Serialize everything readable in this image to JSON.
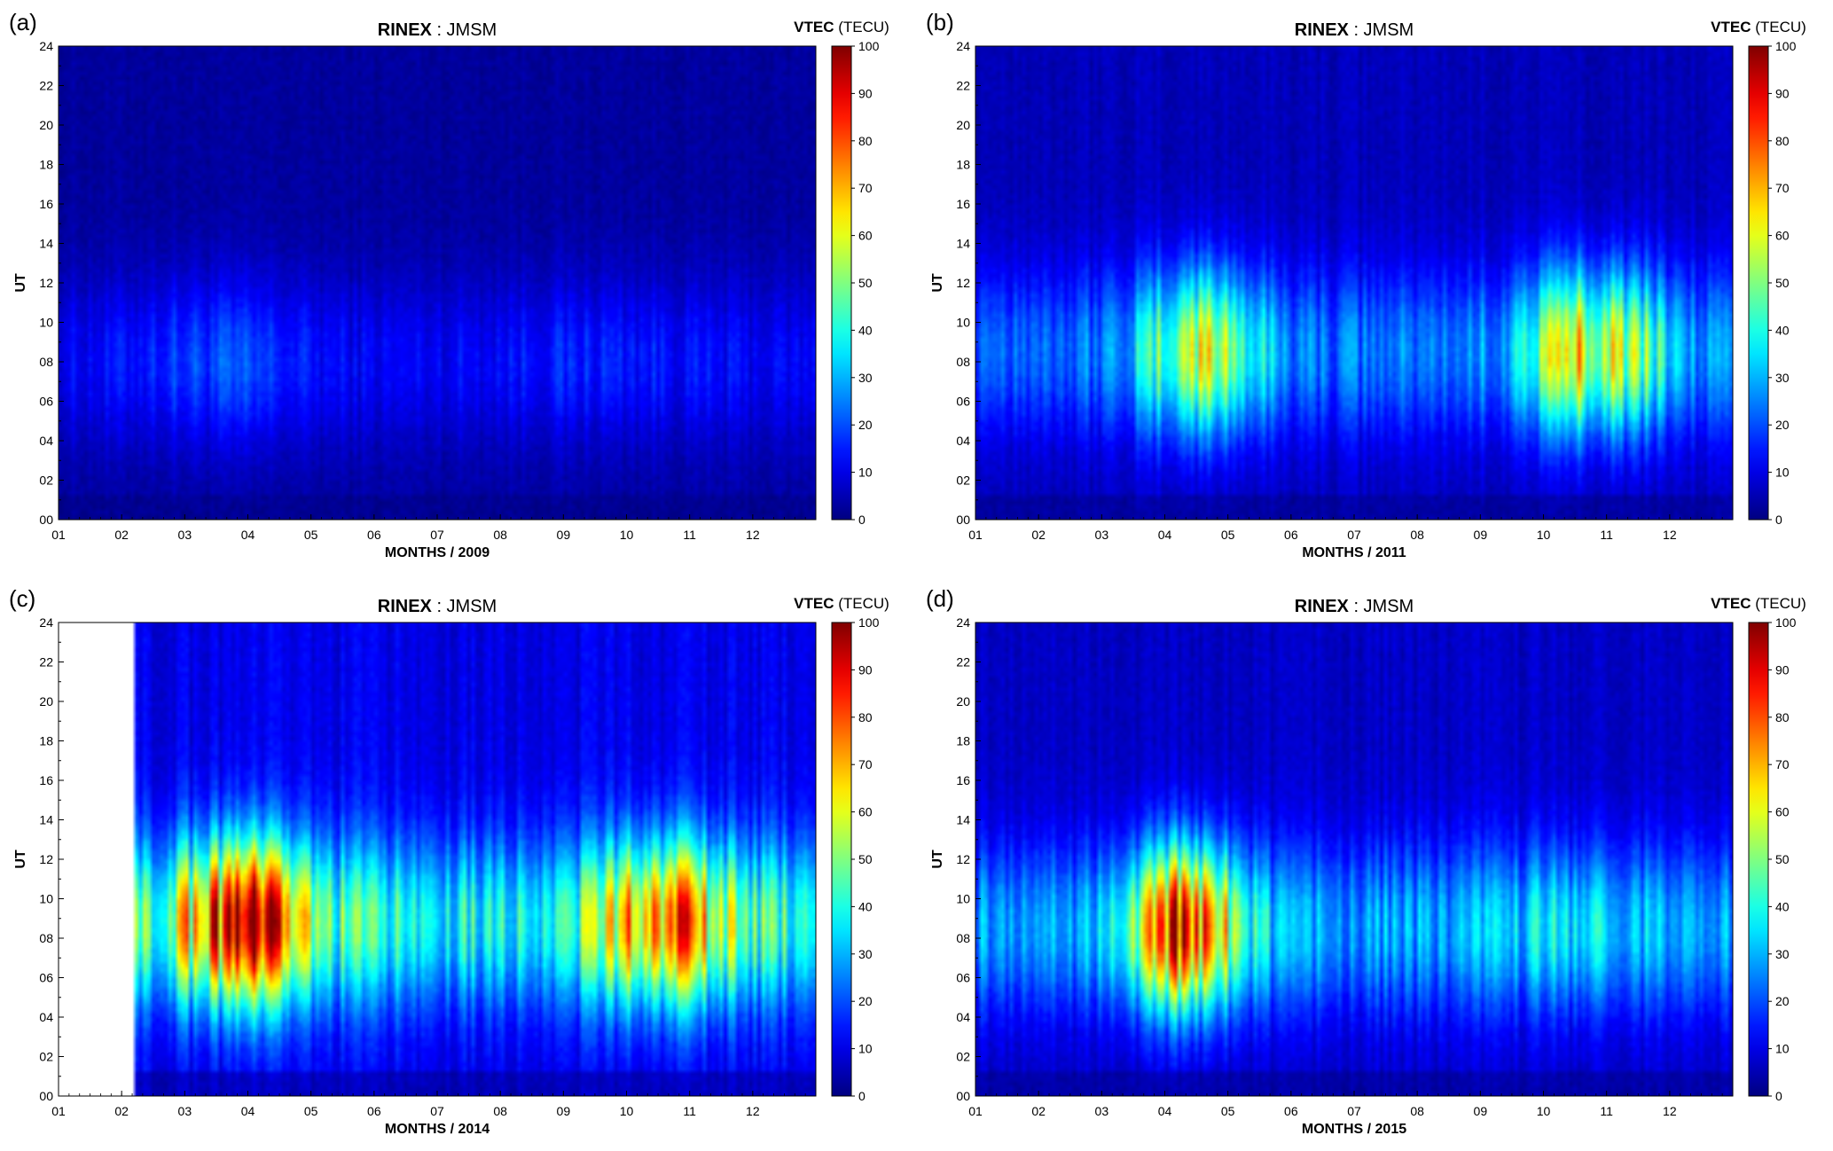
{
  "figure": {
    "value_range": [
      0,
      100
    ],
    "colormap": "jet",
    "colorbar_ticks": [
      "0",
      "10",
      "20",
      "30",
      "40",
      "50",
      "60",
      "70",
      "80",
      "90",
      "100"
    ],
    "y_ticks": [
      "00",
      "02",
      "04",
      "06",
      "08",
      "10",
      "12",
      "14",
      "16",
      "18",
      "20",
      "22",
      "24"
    ],
    "x_ticks": [
      "01",
      "02",
      "03",
      "04",
      "05",
      "06",
      "07",
      "08",
      "09",
      "10",
      "11",
      "12"
    ],
    "ylabel": "UT",
    "colorbar_label_bold": "VTEC",
    "colorbar_label_unit": " (TECU)",
    "title_bold": "RINEX",
    "title_rest": " : JMSM"
  },
  "chart_data": [
    {
      "type": "heatmap",
      "panel_label": "(a)",
      "title": "RINEX : JMSM",
      "xlabel": "MONTHS / 2009",
      "ylabel": "UT",
      "colorbar_label": "VTEC (TECU)",
      "xlim": [
        1,
        13
      ],
      "ylim": [
        0,
        24
      ],
      "clim": [
        0,
        100
      ],
      "data_start_month": 1.0,
      "peak_ut": 8,
      "daytime_level": 12,
      "night_level": 5,
      "seasonal_peaks": [
        {
          "month": 3.5,
          "vtec": 20,
          "width": 1.4
        },
        {
          "month": 9.5,
          "vtec": 16,
          "width": 1.8
        }
      ]
    },
    {
      "type": "heatmap",
      "panel_label": "(b)",
      "title": "RINEX : JMSM",
      "xlabel": "MONTHS / 2011",
      "ylabel": "UT",
      "colorbar_label": "VTEC (TECU)",
      "xlim": [
        1,
        13
      ],
      "ylim": [
        0,
        24
      ],
      "clim": [
        0,
        100
      ],
      "data_start_month": 1.0,
      "peak_ut": 8.5,
      "daytime_level": 25,
      "night_level": 10,
      "seasonal_peaks": [
        {
          "month": 4.6,
          "vtec": 62,
          "width": 0.9
        },
        {
          "month": 10.8,
          "vtec": 68,
          "width": 1.1
        }
      ]
    },
    {
      "type": "heatmap",
      "panel_label": "(c)",
      "title": "RINEX : JMSM",
      "xlabel": "MONTHS / 2014",
      "ylabel": "UT",
      "colorbar_label": "VTEC (TECU)",
      "xlim": [
        1,
        13
      ],
      "ylim": [
        0,
        24
      ],
      "clim": [
        0,
        100
      ],
      "data_start_month": 2.2,
      "peak_ut": 8.8,
      "daytime_level": 42,
      "night_level": 18,
      "seasonal_peaks": [
        {
          "month": 3.9,
          "vtec": 95,
          "width": 1.0
        },
        {
          "month": 10.6,
          "vtec": 80,
          "width": 1.0
        }
      ]
    },
    {
      "type": "heatmap",
      "panel_label": "(d)",
      "title": "RINEX : JMSM",
      "xlabel": "MONTHS / 2015",
      "ylabel": "UT",
      "colorbar_label": "VTEC (TECU)",
      "xlim": [
        1,
        13
      ],
      "ylim": [
        0,
        24
      ],
      "clim": [
        0,
        100
      ],
      "data_start_month": 1.0,
      "peak_ut": 8.5,
      "daytime_level": 30,
      "night_level": 12,
      "seasonal_peaks": [
        {
          "month": 4.3,
          "vtec": 90,
          "width": 0.9
        },
        {
          "month": 10.5,
          "vtec": 38,
          "width": 1.0
        }
      ]
    }
  ]
}
